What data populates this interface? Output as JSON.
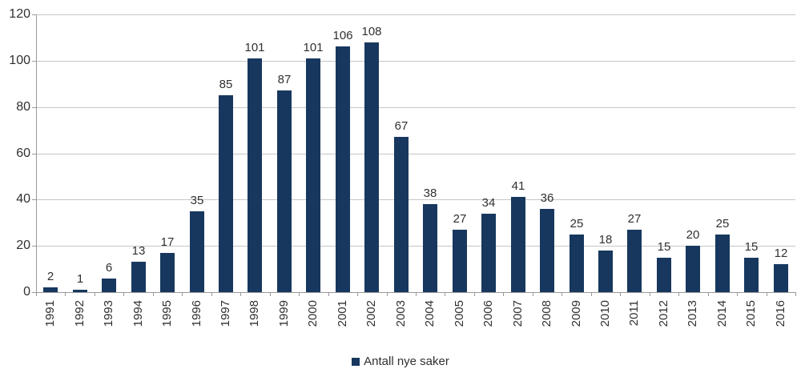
{
  "legend": {
    "label": "Antall nye saker"
  },
  "colors": {
    "bar": "#17375e",
    "gridline": "#c6c6c6",
    "axis": "#9a9a9a",
    "text": "#303030"
  },
  "chart_data": {
    "type": "bar",
    "title": "",
    "xlabel": "",
    "ylabel": "",
    "categories": [
      "1991",
      "1992",
      "1993",
      "1994",
      "1995",
      "1996",
      "1997",
      "1998",
      "1999",
      "2000",
      "2001",
      "2002",
      "2003",
      "2004",
      "2005",
      "2006",
      "2007",
      "2008",
      "2009",
      "2010",
      "2011",
      "2012",
      "2013",
      "2014",
      "2015",
      "2016"
    ],
    "values": [
      2,
      1,
      6,
      13,
      17,
      35,
      85,
      101,
      87,
      101,
      106,
      108,
      67,
      38,
      27,
      34,
      41,
      36,
      25,
      18,
      27,
      15,
      20,
      25,
      15,
      12
    ],
    "series_name": "Antall nye saker",
    "ylim": [
      0,
      120
    ],
    "ytick_step": 20,
    "grid": true,
    "value_labels": true,
    "legend_position": "bottom"
  }
}
